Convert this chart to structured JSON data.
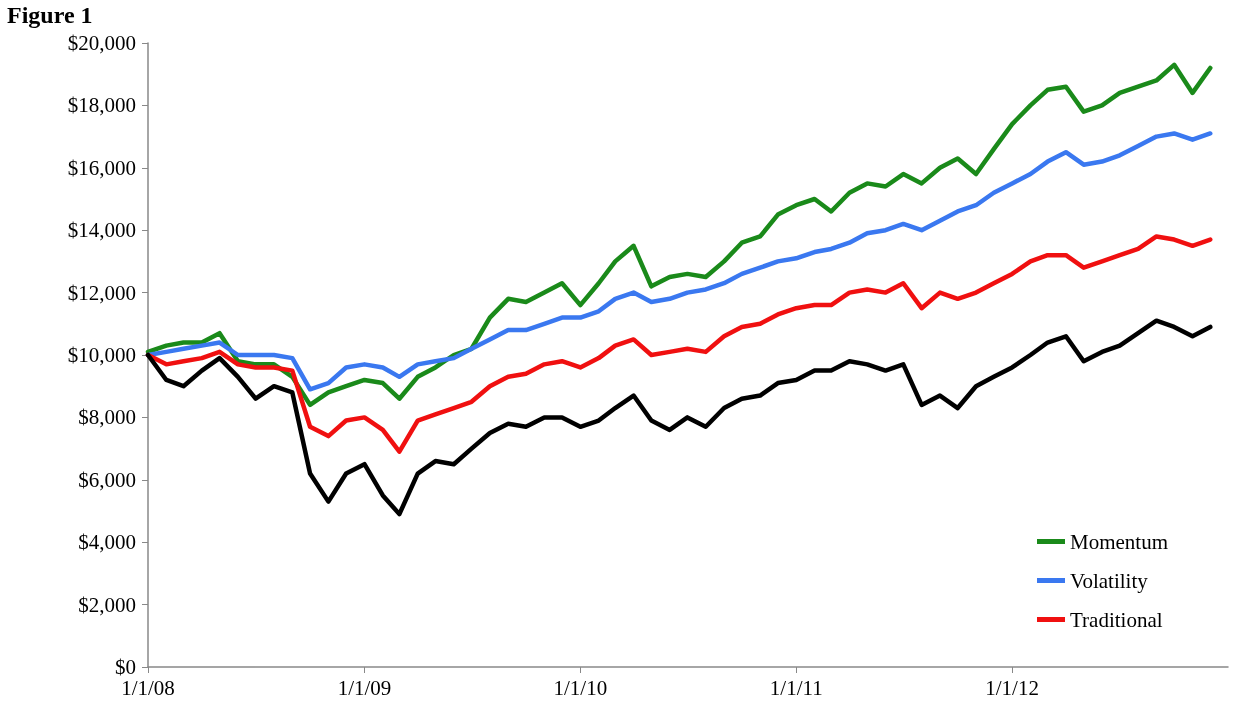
{
  "chart_data": {
    "type": "line",
    "title": "Figure 1",
    "x": [
      "2008-01-01",
      "2008-02-01",
      "2008-03-01",
      "2008-04-01",
      "2008-05-01",
      "2008-06-01",
      "2008-07-01",
      "2008-08-01",
      "2008-09-01",
      "2008-10-01",
      "2008-11-01",
      "2008-12-01",
      "2009-01-01",
      "2009-02-01",
      "2009-03-01",
      "2009-04-01",
      "2009-05-01",
      "2009-06-01",
      "2009-07-01",
      "2009-08-01",
      "2009-09-01",
      "2009-10-01",
      "2009-11-01",
      "2009-12-01",
      "2010-01-01",
      "2010-02-01",
      "2010-03-01",
      "2010-04-01",
      "2010-05-01",
      "2010-06-01",
      "2010-07-01",
      "2010-08-01",
      "2010-09-01",
      "2010-10-01",
      "2010-11-01",
      "2010-12-01",
      "2011-01-01",
      "2011-02-01",
      "2011-03-01",
      "2011-04-01",
      "2011-05-01",
      "2011-06-01",
      "2011-07-01",
      "2011-08-01",
      "2011-09-01",
      "2011-10-01",
      "2011-11-01",
      "2011-12-01",
      "2012-01-01",
      "2012-02-01",
      "2012-03-01",
      "2012-04-01",
      "2012-05-01",
      "2012-06-01",
      "2012-07-01",
      "2012-08-01",
      "2012-09-01",
      "2012-10-01",
      "2012-11-01",
      "2012-12-01"
    ],
    "series": [
      {
        "name": "Momentum",
        "color": "#1a8a1a",
        "values": [
          10100,
          10300,
          10400,
          10400,
          10700,
          9800,
          9700,
          9700,
          9300,
          8400,
          8800,
          9000,
          9200,
          9100,
          8600,
          9300,
          9600,
          10000,
          10200,
          11200,
          11800,
          11700,
          12000,
          12300,
          11600,
          12300,
          13000,
          13500,
          12200,
          12500,
          12600,
          12500,
          13000,
          13600,
          13800,
          14500,
          14800,
          15000,
          14600,
          15200,
          15500,
          15400,
          15800,
          15500,
          16000,
          16300,
          15800,
          16600,
          17400,
          18000,
          18500,
          18600,
          17800,
          18000,
          18400,
          18600,
          18800,
          19300,
          18400,
          19200
        ]
      },
      {
        "name": "Volatility",
        "color": "#3a78f0",
        "values": [
          10000,
          10100,
          10200,
          10300,
          10400,
          10000,
          10000,
          10000,
          9900,
          8900,
          9100,
          9600,
          9700,
          9600,
          9300,
          9700,
          9800,
          9900,
          10200,
          10500,
          10800,
          10800,
          11000,
          11200,
          11200,
          11400,
          11800,
          12000,
          11700,
          11800,
          12000,
          12100,
          12300,
          12600,
          12800,
          13000,
          13100,
          13300,
          13400,
          13600,
          13900,
          14000,
          14200,
          14000,
          14300,
          14600,
          14800,
          15200,
          15500,
          15800,
          16200,
          16500,
          16100,
          16200,
          16400,
          16700,
          17000,
          17100,
          16900,
          17100
        ]
      },
      {
        "name": "Traditional",
        "color": "#f01010",
        "values": [
          10000,
          9700,
          9800,
          9900,
          10100,
          9700,
          9600,
          9600,
          9500,
          7700,
          7400,
          7900,
          8000,
          7600,
          6900,
          7900,
          8100,
          8300,
          8500,
          9000,
          9300,
          9400,
          9700,
          9800,
          9600,
          9900,
          10300,
          10500,
          10000,
          10100,
          10200,
          10100,
          10600,
          10900,
          11000,
          11300,
          11500,
          11600,
          11600,
          12000,
          12100,
          12000,
          12300,
          11500,
          12000,
          11800,
          12000,
          12300,
          12600,
          13000,
          13200,
          13200,
          12800,
          13000,
          13200,
          13400,
          13800,
          13700,
          13500,
          13700
        ]
      },
      {
        "color": "#000000",
        "values": [
          10000,
          9200,
          9000,
          9500,
          9900,
          9300,
          8600,
          9000,
          8800,
          6200,
          5300,
          6200,
          6500,
          5500,
          4900,
          6200,
          6600,
          6500,
          7000,
          7500,
          7800,
          7700,
          8000,
          8000,
          7700,
          7900,
          8300,
          8700,
          7900,
          7600,
          8000,
          7700,
          8300,
          8600,
          8700,
          9100,
          9200,
          9500,
          9500,
          9800,
          9700,
          9500,
          9700,
          8400,
          8700,
          8300,
          9000,
          9300,
          9600,
          10000,
          10400,
          10600,
          9800,
          10100,
          10300,
          10700,
          11100,
          10900,
          10600,
          10900
        ]
      }
    ],
    "xlim": [
      "2008-01-01",
      "2012-12-31"
    ],
    "xticks": [
      {
        "value": "2008-01-01",
        "label": "1/1/08"
      },
      {
        "value": "2009-01-01",
        "label": "1/1/09"
      },
      {
        "value": "2010-01-01",
        "label": "1/1/10"
      },
      {
        "value": "2011-01-01",
        "label": "1/1/11"
      },
      {
        "value": "2012-01-01",
        "label": "1/1/12"
      }
    ],
    "ylim": [
      0,
      20000
    ],
    "yticks": [
      {
        "value": 0,
        "label": "$0"
      },
      {
        "value": 2000,
        "label": "$2,000"
      },
      {
        "value": 4000,
        "label": "$4,000"
      },
      {
        "value": 6000,
        "label": "$6,000"
      },
      {
        "value": 8000,
        "label": "$8,000"
      },
      {
        "value": 10000,
        "label": "$10,000"
      },
      {
        "value": 12000,
        "label": "$12,000"
      },
      {
        "value": 14000,
        "label": "$14,000"
      },
      {
        "value": 16000,
        "label": "$16,000"
      },
      {
        "value": 18000,
        "label": "$18,000"
      },
      {
        "value": 20000,
        "label": "$20,000"
      }
    ],
    "grid": false,
    "legend": "bottom right",
    "marker": "none",
    "line_style": "solid"
  }
}
